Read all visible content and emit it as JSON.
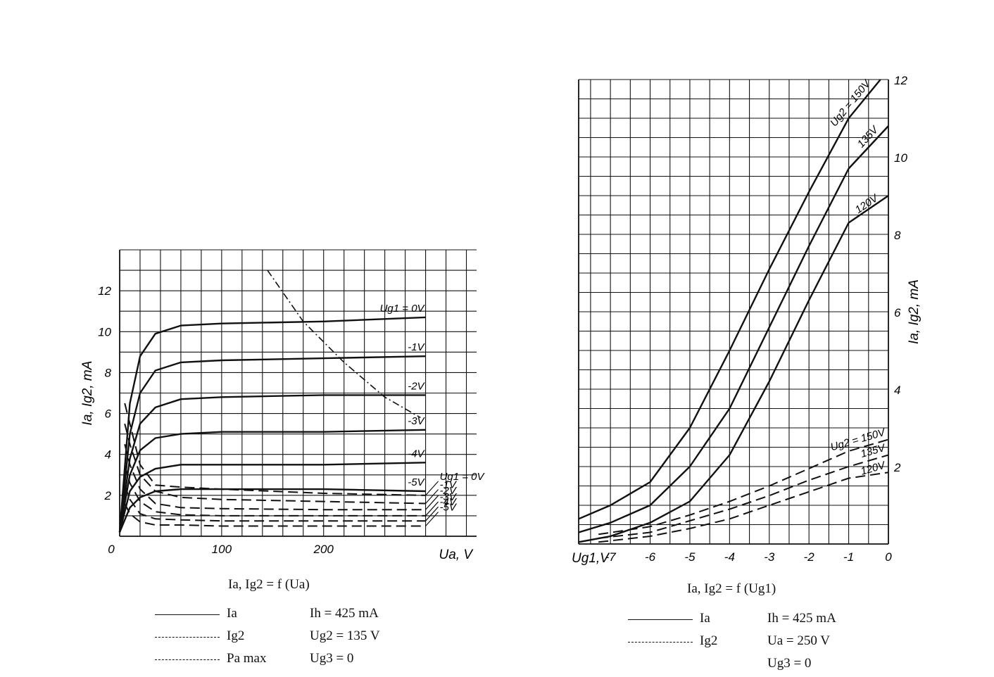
{
  "chart_data": [
    {
      "type": "line",
      "title": "Ia, Ig2 = f (Ua)",
      "xlabel": "Ua, V",
      "ylabel": "Ia, Ig2, mA",
      "xlim": [
        0,
        350
      ],
      "ylim": [
        0,
        14
      ],
      "x_ticks": [
        "0",
        "100",
        "200"
      ],
      "y_ticks": [
        "2",
        "4",
        "6",
        "8",
        "10",
        "12"
      ],
      "grid": true,
      "series_Ia": [
        {
          "name": "Ug1 = 0V",
          "points": [
            [
              0,
              0.2
            ],
            [
              10,
              6.5
            ],
            [
              20,
              8.8
            ],
            [
              35,
              9.9
            ],
            [
              60,
              10.3
            ],
            [
              100,
              10.4
            ],
            [
              200,
              10.5
            ],
            [
              300,
              10.7
            ]
          ]
        },
        {
          "name": "-1V",
          "points": [
            [
              0,
              0.2
            ],
            [
              10,
              5.0
            ],
            [
              20,
              7.0
            ],
            [
              35,
              8.1
            ],
            [
              60,
              8.5
            ],
            [
              100,
              8.6
            ],
            [
              200,
              8.7
            ],
            [
              300,
              8.8
            ]
          ]
        },
        {
          "name": "-2V",
          "points": [
            [
              0,
              0.2
            ],
            [
              10,
              3.8
            ],
            [
              20,
              5.5
            ],
            [
              35,
              6.3
            ],
            [
              60,
              6.7
            ],
            [
              100,
              6.8
            ],
            [
              200,
              6.9
            ],
            [
              300,
              6.9
            ]
          ]
        },
        {
          "name": "-3V",
          "points": [
            [
              0,
              0.2
            ],
            [
              10,
              3.0
            ],
            [
              20,
              4.2
            ],
            [
              35,
              4.8
            ],
            [
              60,
              5.0
            ],
            [
              100,
              5.1
            ],
            [
              200,
              5.1
            ],
            [
              300,
              5.2
            ]
          ]
        },
        {
          "name": "-4V",
          "points": [
            [
              0,
              0.2
            ],
            [
              10,
              2.2
            ],
            [
              20,
              2.9
            ],
            [
              35,
              3.3
            ],
            [
              60,
              3.5
            ],
            [
              100,
              3.5
            ],
            [
              200,
              3.5
            ],
            [
              300,
              3.6
            ]
          ]
        },
        {
          "name": "-5V",
          "points": [
            [
              0,
              0.2
            ],
            [
              10,
              1.4
            ],
            [
              20,
              1.9
            ],
            [
              35,
              2.2
            ],
            [
              60,
              2.3
            ],
            [
              100,
              2.3
            ],
            [
              200,
              2.3
            ],
            [
              300,
              2.2
            ]
          ]
        }
      ],
      "series_Ig2": [
        {
          "name": "Ug1 = 0V",
          "points": [
            [
              5,
              6.5
            ],
            [
              10,
              5.5
            ],
            [
              20,
              3.5
            ],
            [
              35,
              2.5
            ],
            [
              60,
              2.4
            ],
            [
              100,
              2.3
            ],
            [
              200,
              2.1
            ],
            [
              300,
              2.0
            ]
          ]
        },
        {
          "name": "-1V",
          "points": [
            [
              5,
              5.5
            ],
            [
              10,
              4.5
            ],
            [
              20,
              3.0
            ],
            [
              35,
              2.2
            ],
            [
              60,
              1.9
            ],
            [
              100,
              1.8
            ],
            [
              200,
              1.7
            ],
            [
              300,
              1.6
            ]
          ]
        },
        {
          "name": "-2V",
          "points": [
            [
              5,
              4.5
            ],
            [
              10,
              3.5
            ],
            [
              20,
              2.3
            ],
            [
              35,
              1.6
            ],
            [
              60,
              1.4
            ],
            [
              100,
              1.35
            ],
            [
              200,
              1.3
            ],
            [
              300,
              1.3
            ]
          ]
        },
        {
          "name": "-3V",
          "points": [
            [
              5,
              3.5
            ],
            [
              10,
              2.6
            ],
            [
              20,
              1.7
            ],
            [
              35,
              1.2
            ],
            [
              60,
              1.05
            ],
            [
              100,
              1.0
            ],
            [
              200,
              1.0
            ],
            [
              300,
              1.0
            ]
          ]
        },
        {
          "name": "-4V",
          "points": [
            [
              5,
              2.5
            ],
            [
              10,
              1.8
            ],
            [
              20,
              1.1
            ],
            [
              35,
              0.85
            ],
            [
              60,
              0.8
            ],
            [
              100,
              0.75
            ],
            [
              200,
              0.75
            ],
            [
              300,
              0.75
            ]
          ]
        },
        {
          "name": "-5V",
          "points": [
            [
              5,
              1.6
            ],
            [
              10,
              1.1
            ],
            [
              20,
              0.7
            ],
            [
              35,
              0.55
            ],
            [
              60,
              0.55
            ],
            [
              100,
              0.5
            ],
            [
              200,
              0.5
            ],
            [
              300,
              0.5
            ]
          ]
        }
      ],
      "series_Pa_max": [
        [
          145,
          13.0
        ],
        [
          180,
          10.5
        ],
        [
          220,
          8.5
        ],
        [
          260,
          6.8
        ],
        [
          295,
          5.8
        ]
      ],
      "ia_labels": [
        "Ug1 = 0V",
        "-1V",
        "-2V",
        "-3V",
        "-4V",
        "-5V"
      ],
      "ig2_labels": [
        "Ug1 = 0V",
        "-1V",
        "-2V",
        "-3V",
        "-4V",
        "-5V"
      ],
      "legend": {
        "ia": "Ia",
        "ig2": "Ig2",
        "pamax": "Pa max",
        "cond1": "Ih = 425 mA",
        "cond2": "Ug2 = 135 V",
        "cond3": "Ug3 = 0"
      }
    },
    {
      "type": "line",
      "title": "Ia, Ig2 = f (Ug1)",
      "xlabel": "Ug1,V",
      "ylabel": "Ia, Ig2, mA",
      "xlim": [
        -7.8,
        0
      ],
      "ylim": [
        0,
        12
      ],
      "x_ticks": [
        "-7",
        "-6",
        "-5",
        "-4",
        "-3",
        "-2",
        "-1",
        "0"
      ],
      "y_ticks": [
        "2",
        "4",
        "6",
        "8",
        "10",
        "12"
      ],
      "grid": true,
      "series_Ia": [
        {
          "name": "Ug2 = 150V",
          "points": [
            [
              -7.8,
              0.65
            ],
            [
              -7,
              1.0
            ],
            [
              -6,
              1.6
            ],
            [
              -5,
              3.0
            ],
            [
              -4,
              5.0
            ],
            [
              -3,
              7.1
            ],
            [
              -2,
              9.1
            ],
            [
              -1,
              11.0
            ],
            [
              -0.2,
              12.0
            ]
          ]
        },
        {
          "name": "135V",
          "points": [
            [
              -7.8,
              0.3
            ],
            [
              -7,
              0.55
            ],
            [
              -6,
              1.0
            ],
            [
              -5,
              2.0
            ],
            [
              -4,
              3.5
            ],
            [
              -3,
              5.6
            ],
            [
              -2,
              7.7
            ],
            [
              -1,
              9.7
            ],
            [
              0,
              10.8
            ]
          ]
        },
        {
          "name": "120V",
          "points": [
            [
              -7.8,
              0.05
            ],
            [
              -7,
              0.2
            ],
            [
              -6,
              0.55
            ],
            [
              -5,
              1.1
            ],
            [
              -4,
              2.3
            ],
            [
              -3,
              4.2
            ],
            [
              -2,
              6.3
            ],
            [
              -1,
              8.3
            ],
            [
              0,
              9.0
            ]
          ]
        }
      ],
      "series_Ig2": [
        {
          "name": "Ug2 = 150V",
          "points": [
            [
              -7.3,
              0.25
            ],
            [
              -6,
              0.45
            ],
            [
              -5,
              0.75
            ],
            [
              -4,
              1.1
            ],
            [
              -3,
              1.5
            ],
            [
              -2,
              1.95
            ],
            [
              -1,
              2.4
            ],
            [
              0,
              2.7
            ]
          ]
        },
        {
          "name": "135V",
          "points": [
            [
              -7.3,
              0.15
            ],
            [
              -6,
              0.3
            ],
            [
              -5,
              0.6
            ],
            [
              -4,
              0.9
            ],
            [
              -3,
              1.25
            ],
            [
              -2,
              1.65
            ],
            [
              -1,
              2.0
            ],
            [
              0,
              2.3
            ]
          ]
        },
        {
          "name": "120V",
          "points": [
            [
              -7.3,
              0.05
            ],
            [
              -6,
              0.2
            ],
            [
              -5,
              0.4
            ],
            [
              -4,
              0.65
            ],
            [
              -3,
              1.0
            ],
            [
              -2,
              1.35
            ],
            [
              -1,
              1.7
            ],
            [
              0,
              1.85
            ]
          ]
        }
      ],
      "ia_labels": [
        "Ug2 = 150V",
        "135V",
        "120V"
      ],
      "ig2_labels": [
        "Ug2 = 150V",
        "135V",
        "120V"
      ],
      "legend": {
        "ia": "Ia",
        "ig2": "Ig2",
        "cond1": "Ih = 425 mA",
        "cond2": "Ua = 250 V",
        "cond3": "Ug3 = 0"
      }
    }
  ]
}
